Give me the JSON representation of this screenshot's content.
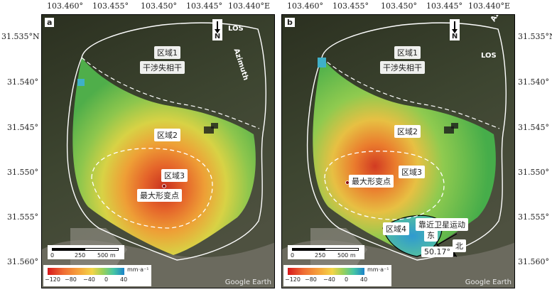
{
  "longitude_ticks": [
    "103.460°",
    "103.455°",
    "103.450°",
    "103.445°",
    "103.440°E"
  ],
  "latitude_ticks": [
    "31.535°N",
    "31.540°",
    "31.545°",
    "31.550°",
    "31.555°",
    "31.560°"
  ],
  "panels": [
    {
      "letter": "a",
      "regions": {
        "r1": "区域1",
        "decorrelation": "干涉失相干",
        "r2": "区域2",
        "r3": "区域3",
        "max_point": "最大形变点"
      },
      "north": "N",
      "los_label": "LOS",
      "direction_label": "Azimuth",
      "scale": [
        "0",
        "250",
        "500 m"
      ],
      "colorbar": {
        "ticks": [
          "−120",
          "−80",
          "−40",
          "0",
          "40"
        ],
        "unit": "mm·a⁻¹"
      },
      "credit": "Google Earth"
    },
    {
      "letter": "b",
      "regions": {
        "r1": "区域1",
        "decorrelation": "干涉失相干",
        "r2": "区域2",
        "r3": "区域3",
        "max_point": "最大形变点",
        "r4": "区域4"
      },
      "annotation": {
        "toward_satellite": "靠近卫星运动",
        "east": "东",
        "north_cn": "北",
        "angle": "50.17°"
      },
      "north": "N",
      "los_label": "LOS",
      "direction_label": "Azimuth",
      "scale": [
        "0",
        "250",
        "500 m"
      ],
      "colorbar": {
        "ticks": [
          "−120",
          "−80",
          "−40",
          "0",
          "40"
        ],
        "unit": "mm·a⁻¹"
      },
      "credit": "Google Earth"
    }
  ],
  "colors": {
    "colorbar_min": "#d7191c",
    "colorbar_mid": "#f3d447",
    "colorbar_max": "#1b83c9",
    "boundary": "#ffffff"
  }
}
